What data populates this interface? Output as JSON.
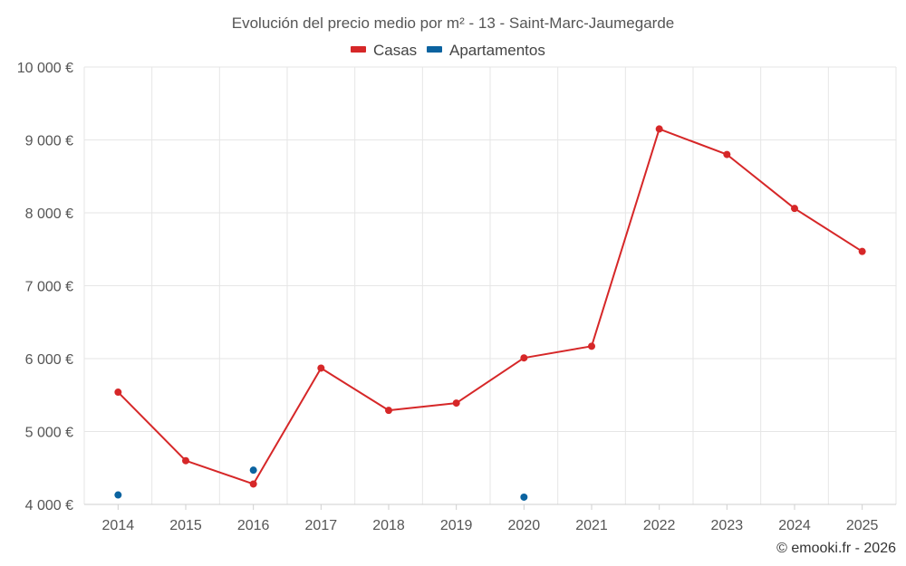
{
  "chart_data": {
    "type": "line",
    "title": "Evolución del precio medio por m² - 13 - Saint-Marc-Jaumegarde",
    "categories": [
      "2014",
      "2015",
      "2016",
      "2017",
      "2018",
      "2019",
      "2020",
      "2021",
      "2022",
      "2023",
      "2024",
      "2025"
    ],
    "ylim": [
      4000,
      10000
    ],
    "yticks": [
      4000,
      5000,
      6000,
      7000,
      8000,
      9000,
      10000
    ],
    "ytick_labels": [
      "4 000 €",
      "5 000 €",
      "6 000 €",
      "7 000 €",
      "8 000 €",
      "9 000 €",
      "10 000 €"
    ],
    "grid": true,
    "legend_position": "top-center",
    "series": [
      {
        "name": "Casas",
        "color": "#d62728",
        "style": "line-markers",
        "values": [
          5540,
          4600,
          4280,
          5870,
          5290,
          5390,
          6010,
          6170,
          9150,
          8800,
          8060,
          7470
        ]
      },
      {
        "name": "Apartamentos",
        "color": "#0b63a0",
        "style": "markers",
        "values": [
          4130,
          null,
          4470,
          null,
          null,
          null,
          4100,
          null,
          null,
          null,
          null,
          null
        ]
      }
    ],
    "credit": "© emooki.fr - 2026"
  }
}
